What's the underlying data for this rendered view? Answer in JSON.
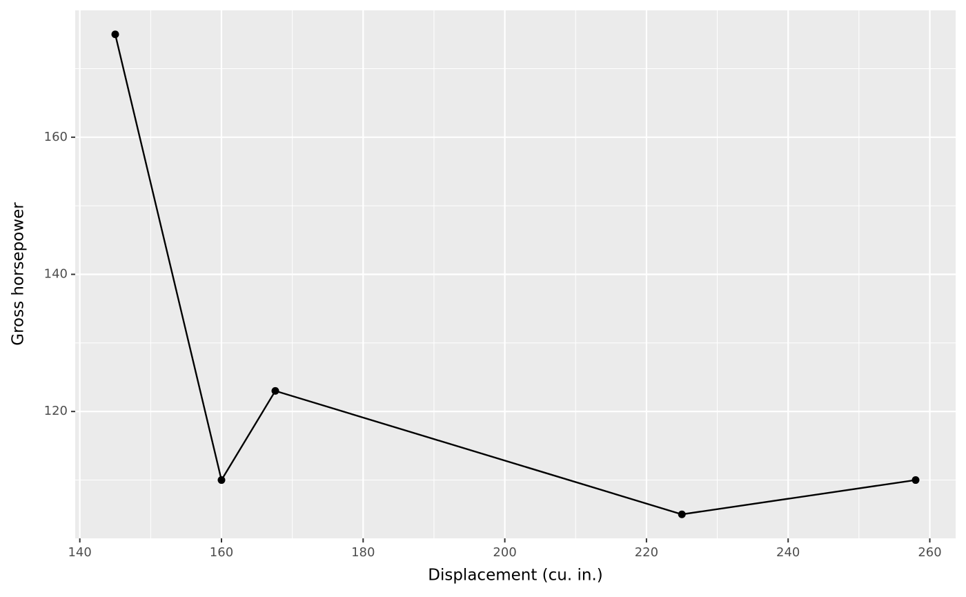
{
  "chart_data": {
    "type": "line",
    "x_label": "Displacement (cu. in.)",
    "y_label": "Gross horsepower",
    "x": [
      145,
      160,
      167.6,
      225,
      258
    ],
    "series": [
      {
        "color": "#000000",
        "values": [
          175,
          110,
          123,
          105,
          110
        ]
      }
    ],
    "xlim": [
      139.35,
      263.65
    ],
    "ylim": [
      101.5,
      178.5
    ],
    "xticks": [
      140,
      160,
      180,
      200,
      220,
      240,
      260
    ],
    "yticks": [
      120,
      140,
      160
    ],
    "x_minor_ticks": [
      150,
      170,
      190,
      210,
      230,
      250
    ],
    "y_minor_ticks": [
      110,
      130,
      150,
      170
    ],
    "grid": true,
    "markers": true
  }
}
